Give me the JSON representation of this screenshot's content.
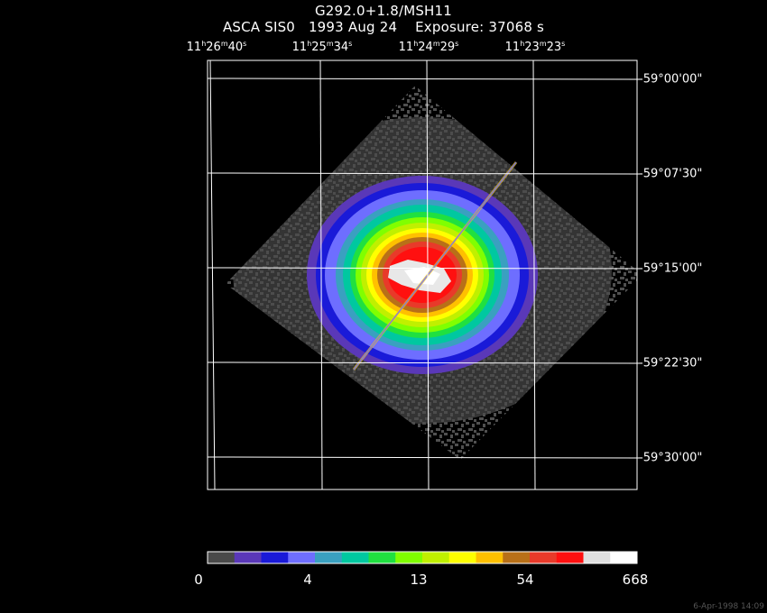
{
  "title": {
    "object": "G292.0+1.8/MSH11",
    "observation": "ASCA SIS0   1993 Aug 24    Exposure: 37068 s"
  },
  "ra_ticks": [
    {
      "h": "11",
      "m": "26",
      "s": "40"
    },
    {
      "h": "11",
      "m": "25",
      "s": "34"
    },
    {
      "h": "11",
      "m": "24",
      "s": "29"
    },
    {
      "h": "11",
      "m": "23",
      "s": "23"
    }
  ],
  "dec_ticks": [
    "-59°00'00\"",
    "-59°07'30\"",
    "-59°15'00\"",
    "-59°22'30\"",
    "-59°30'00\""
  ],
  "colorbar": {
    "colors": [
      "#4a4a4a",
      "#5a38b8",
      "#1a1ad8",
      "#6e6eff",
      "#3aa0c0",
      "#00c8a0",
      "#20e040",
      "#80ff00",
      "#c0f000",
      "#ffff00",
      "#ffc000",
      "#b87018",
      "#e83a2a",
      "#ff1010",
      "#e0e0e0",
      "#ffffff"
    ],
    "labels": [
      "0",
      "4",
      "13",
      "54",
      "668"
    ]
  },
  "footer": "6-Apr-1998 14:09"
}
